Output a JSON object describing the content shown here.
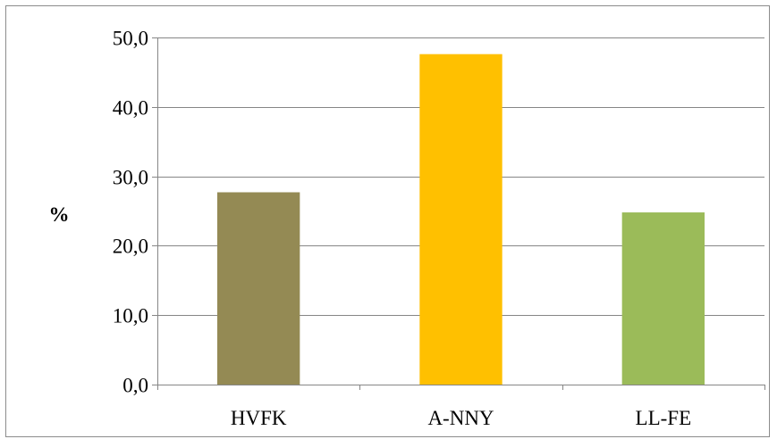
{
  "chart_data": {
    "type": "bar",
    "categories": [
      "HVFK",
      "A-NNY",
      "LL-FE"
    ],
    "values": [
      27.7,
      47.6,
      24.8
    ],
    "colors": [
      "#948a54",
      "#ffc000",
      "#9bbb59"
    ],
    "title": "",
    "xlabel": "",
    "ylabel": "%",
    "ylim": [
      0,
      50
    ],
    "yticks": [
      "0,0",
      "10,0",
      "20,0",
      "30,0",
      "40,0",
      "50,0"
    ],
    "grid": true,
    "legend": "none"
  }
}
